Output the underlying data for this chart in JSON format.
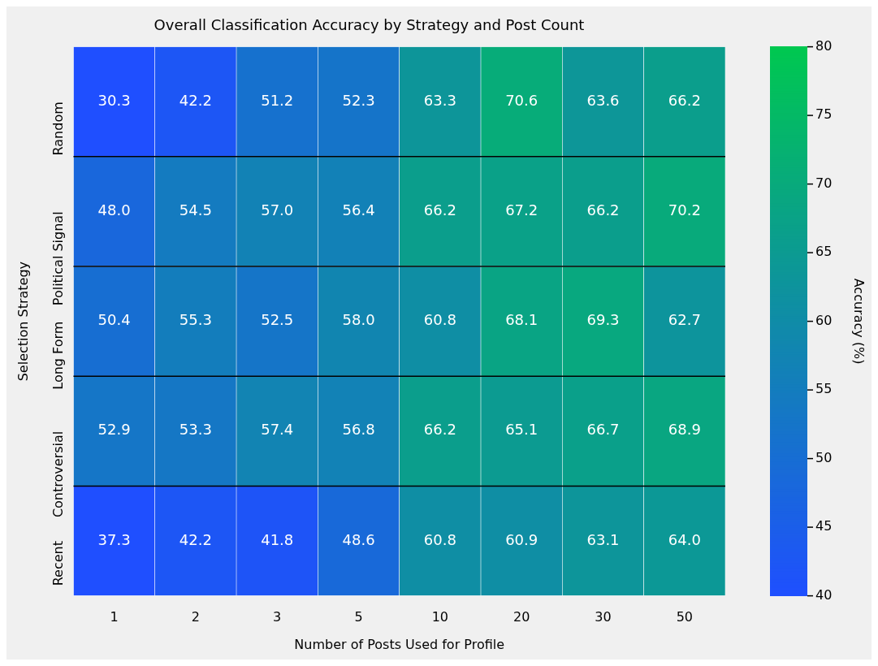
{
  "chart_data": {
    "type": "heatmap",
    "title": "Overall Classification Accuracy by Strategy and Post Count",
    "xlabel": "Number of Posts Used for Profile",
    "ylabel": "Selection Strategy",
    "clabel": "Accuracy (%)",
    "categories": [
      "1",
      "2",
      "3",
      "5",
      "10",
      "20",
      "30",
      "50"
    ],
    "y_categories": [
      "Random",
      "Political Signal",
      "Long Form",
      "Controversial",
      "Recent"
    ],
    "cells": [
      [
        30.3,
        42.2,
        51.2,
        52.3,
        63.3,
        70.6,
        63.6,
        66.2
      ],
      [
        48.0,
        54.5,
        57.0,
        56.4,
        66.2,
        67.2,
        66.2,
        70.2
      ],
      [
        50.4,
        55.3,
        52.5,
        58.0,
        60.8,
        68.1,
        69.3,
        62.7
      ],
      [
        52.9,
        53.3,
        57.4,
        56.8,
        66.2,
        65.1,
        66.7,
        68.9
      ],
      [
        37.3,
        42.2,
        41.8,
        48.6,
        60.8,
        60.9,
        63.1,
        64.0
      ]
    ],
    "cell_labels": [
      [
        "30.3",
        "42.2",
        "51.2",
        "52.3",
        "63.3",
        "70.6",
        "63.6",
        "66.2"
      ],
      [
        "48.0",
        "54.5",
        "57.0",
        "56.4",
        "66.2",
        "67.2",
        "66.2",
        "70.2"
      ],
      [
        "50.4",
        "55.3",
        "52.5",
        "58.0",
        "60.8",
        "68.1",
        "69.3",
        "62.7"
      ],
      [
        "52.9",
        "53.3",
        "57.4",
        "56.8",
        "66.2",
        "65.1",
        "66.7",
        "68.9"
      ],
      [
        "37.3",
        "42.2",
        "41.8",
        "48.6",
        "60.8",
        "60.9",
        "63.1",
        "64.0"
      ]
    ],
    "clim": [
      40,
      80
    ],
    "cticks": [
      40,
      45,
      50,
      55,
      60,
      65,
      70,
      75,
      80
    ],
    "data_labels": true
  }
}
